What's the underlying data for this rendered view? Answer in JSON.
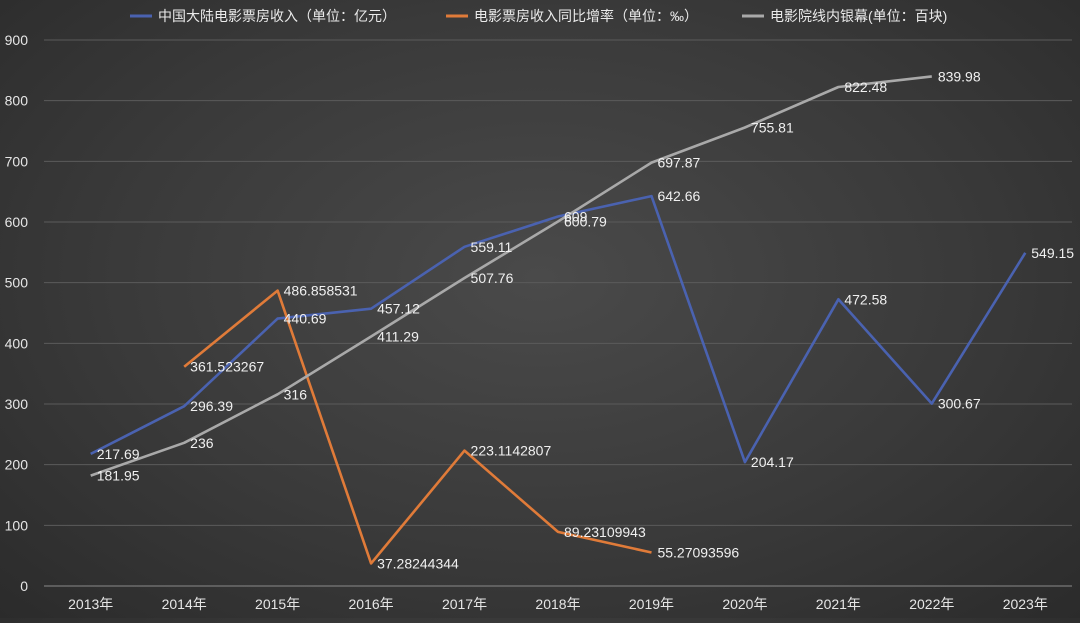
{
  "chart_data": {
    "type": "line",
    "categories": [
      "2013年",
      "2014年",
      "2015年",
      "2016年",
      "2017年",
      "2018年",
      "2019年",
      "2020年",
      "2021年",
      "2022年",
      "2023年"
    ],
    "ylim": [
      0,
      900
    ],
    "yticks": [
      0,
      100,
      200,
      300,
      400,
      500,
      600,
      700,
      800,
      900
    ],
    "grid": true,
    "legend_position": "top",
    "series": [
      {
        "name": "中国大陆电影票房收入（单位：亿元）",
        "color": "#4a62b0",
        "values": [
          217.69,
          296.39,
          440.69,
          457.12,
          559.11,
          609,
          642.66,
          204.17,
          472.58,
          300.67,
          549.15
        ],
        "labels": [
          "217.69",
          "296.39",
          "440.69",
          "457.12",
          "559.11",
          "609",
          "642.66",
          "204.17",
          "472.58",
          "300.67",
          "549.15"
        ]
      },
      {
        "name": "电影票房收入同比增率（单位：‰）",
        "color": "#e07b39",
        "values": [
          null,
          361.523267,
          486.858531,
          37.28244344,
          223.1142807,
          89.23109943,
          55.27093596,
          null,
          null,
          null,
          null
        ],
        "labels": [
          null,
          "361.523267",
          "486.858531",
          "37.28244344",
          "223.1142807",
          "89.23109943",
          "55.27093596",
          null,
          null,
          null,
          null
        ]
      },
      {
        "name": "电影院线内银幕(单位：百块)",
        "color": "#a9a9a9",
        "values": [
          181.95,
          236,
          316,
          411.29,
          507.76,
          600.79,
          697.87,
          755.81,
          822.48,
          839.98,
          null
        ],
        "labels": [
          "181.95",
          "236",
          "316",
          "411.29",
          "507.76",
          "600.79",
          "697.87",
          "755.81",
          "822.48",
          "839.98",
          null
        ]
      }
    ]
  }
}
